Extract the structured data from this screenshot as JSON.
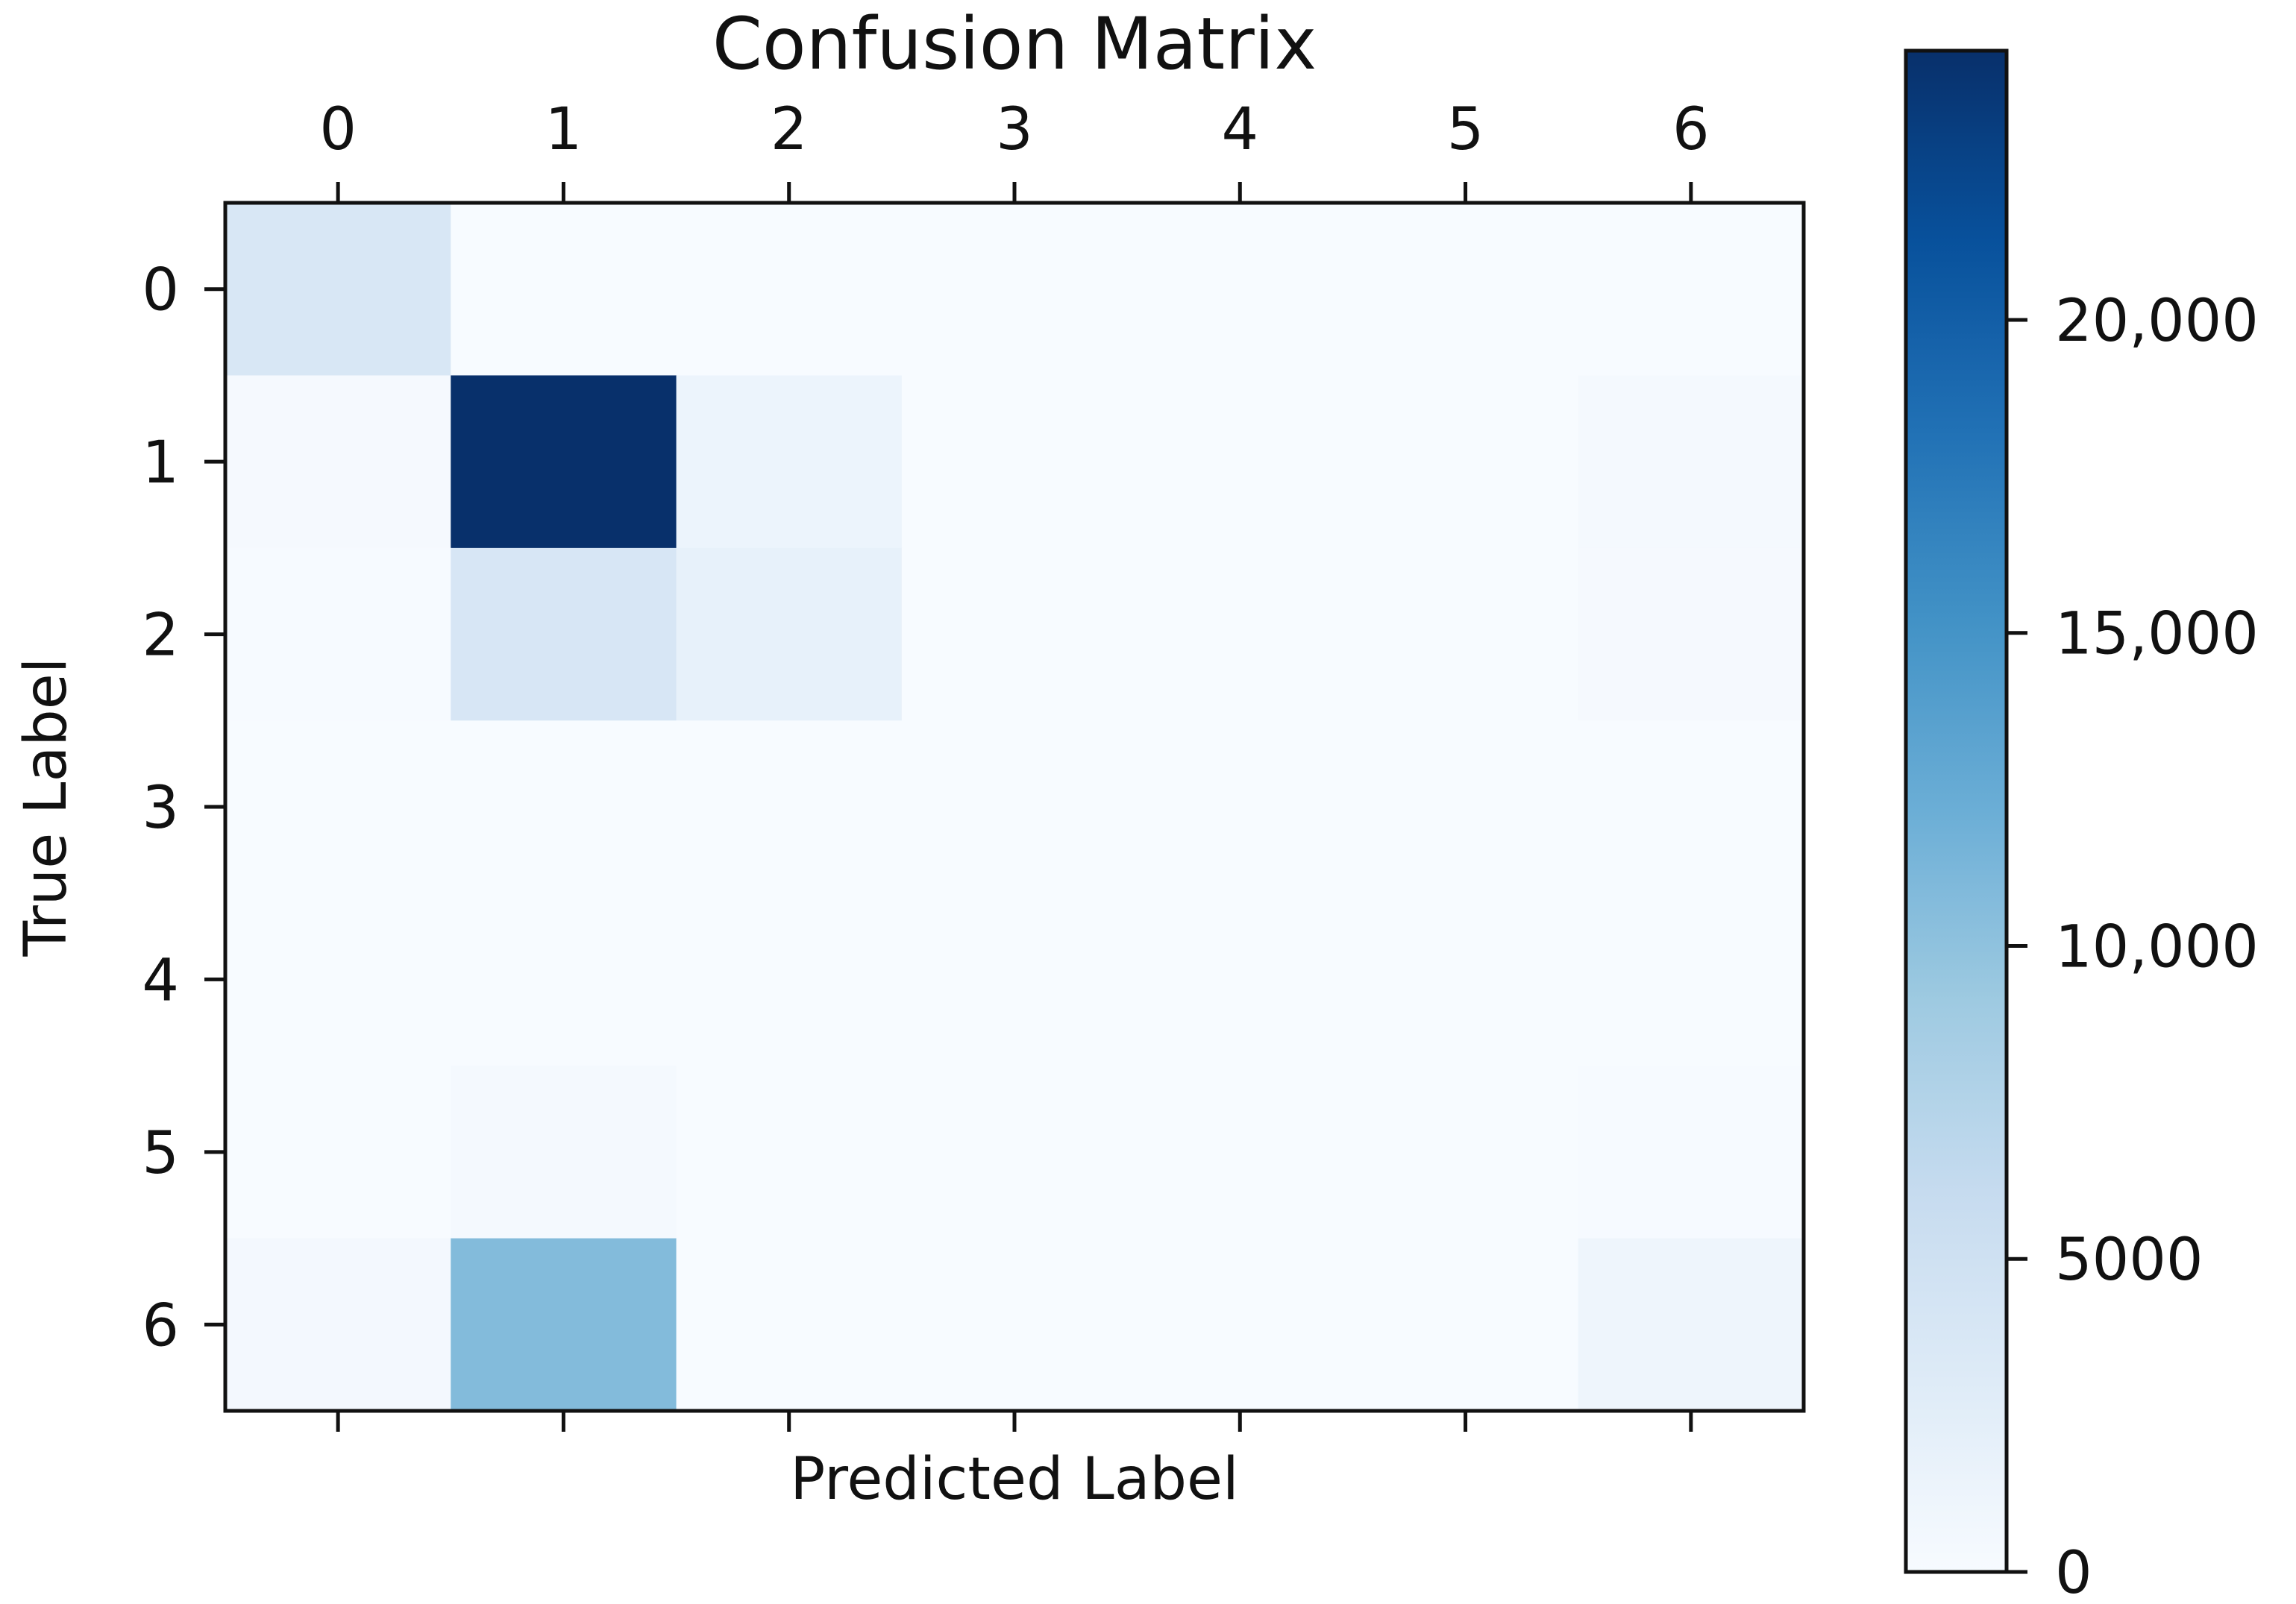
{
  "chart_data": {
    "type": "heatmap",
    "title": "Confusion Matrix",
    "xlabel": "Predicted Label",
    "ylabel": "True Label",
    "x_categories": [
      "0",
      "1",
      "2",
      "3",
      "4",
      "5",
      "6"
    ],
    "y_categories": [
      "0",
      "1",
      "2",
      "3",
      "4",
      "5",
      "6"
    ],
    "matrix": [
      [
        3800,
        20,
        10,
        0,
        0,
        0,
        50
      ],
      [
        300,
        24300,
        1300,
        10,
        0,
        10,
        400
      ],
      [
        150,
        3900,
        1900,
        10,
        0,
        0,
        300
      ],
      [
        20,
        60,
        30,
        0,
        0,
        0,
        20
      ],
      [
        10,
        60,
        20,
        0,
        0,
        0,
        20
      ],
      [
        60,
        400,
        40,
        0,
        0,
        0,
        100
      ],
      [
        500,
        10700,
        50,
        0,
        0,
        0,
        1100
      ]
    ],
    "colorbar": {
      "colormap": "Blues",
      "min": 0,
      "max": 24300,
      "ticks": [
        0,
        5000,
        10000,
        15000,
        20000
      ],
      "tick_labels": [
        "0",
        "5000",
        "10,000",
        "15,000",
        "20,000"
      ]
    },
    "x_ticks_position": "top",
    "grid": false
  }
}
